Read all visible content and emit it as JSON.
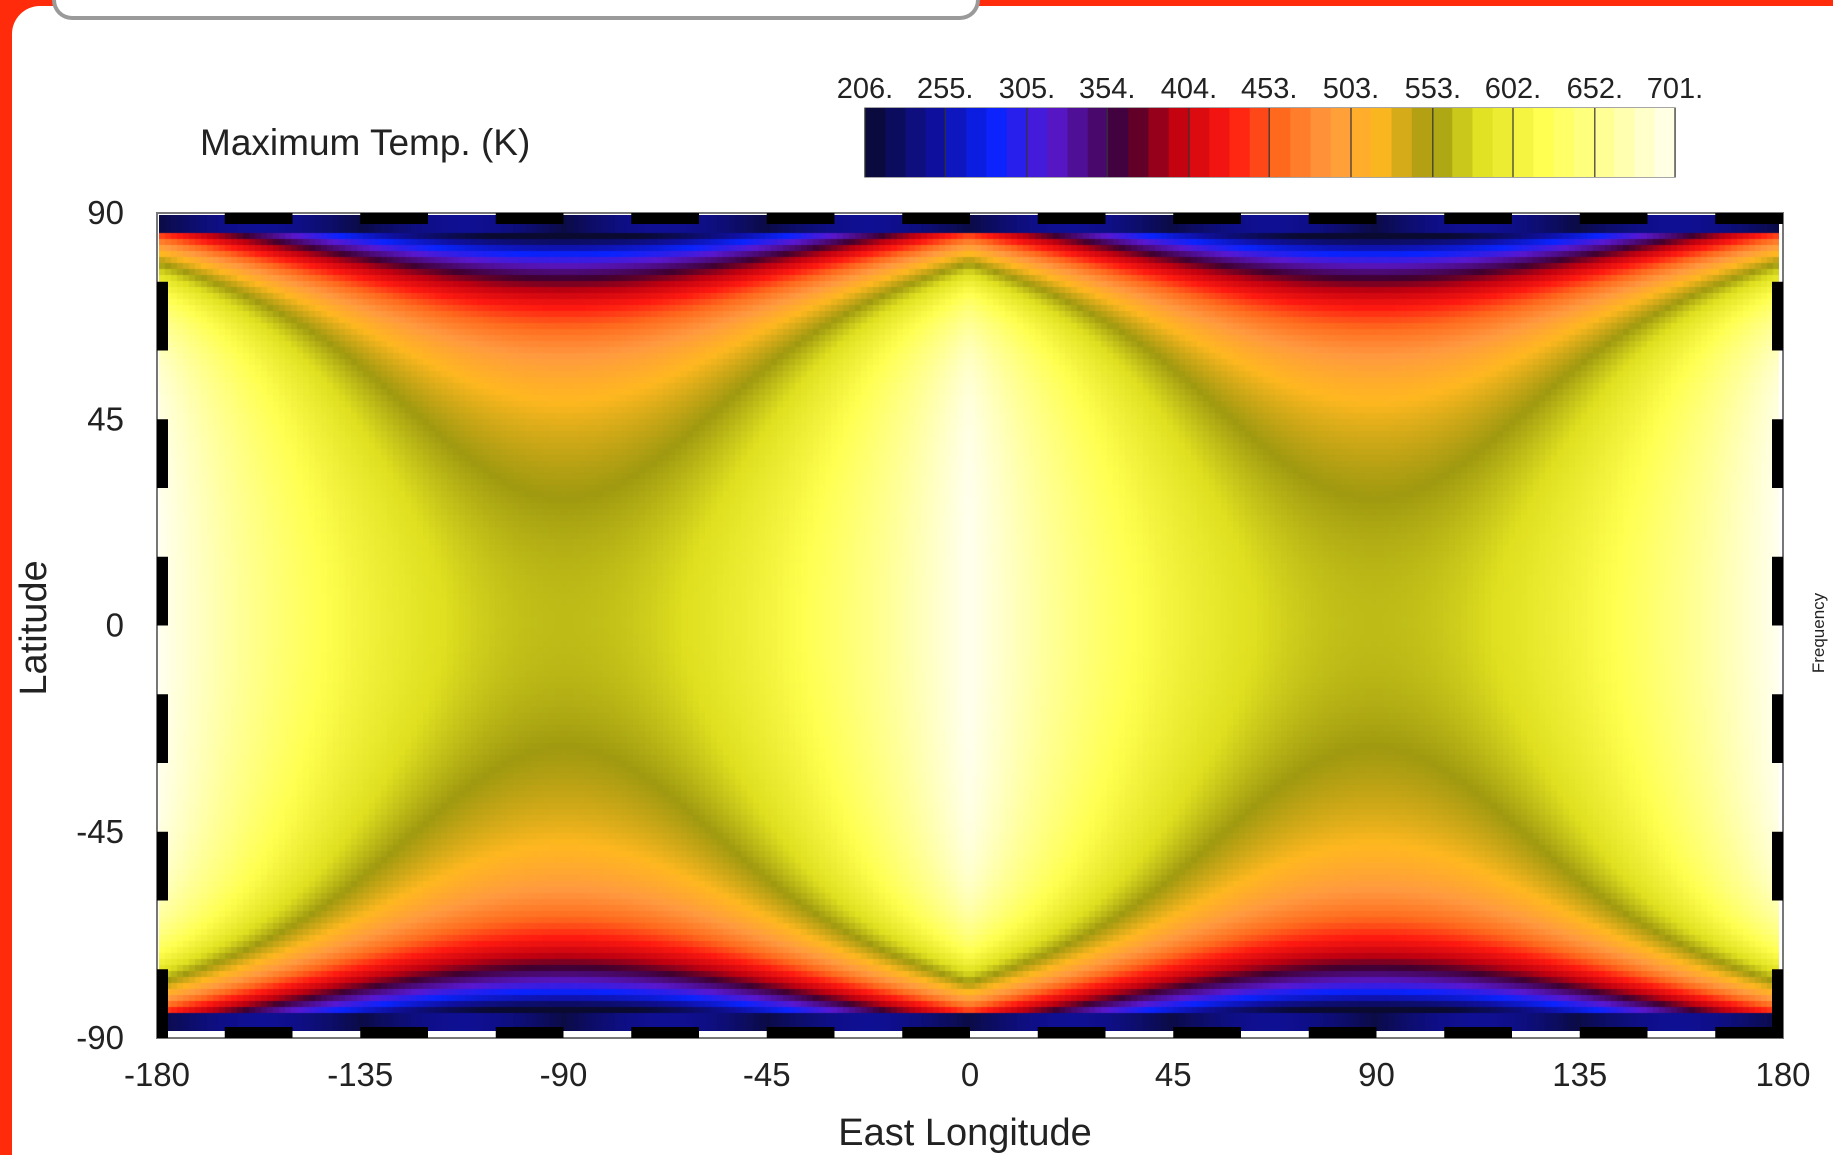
{
  "chart_data": {
    "type": "heatmap",
    "title": "Maximum Temp. (K)",
    "xlabel": "East Longitude",
    "ylabel": "Latitude",
    "side_label": "Frequency",
    "xlim": [
      -180,
      180
    ],
    "ylim": [
      -90,
      90
    ],
    "x_ticks": [
      "-180",
      "-135",
      "-90",
      "-45",
      "0",
      "45",
      "90",
      "135",
      "180"
    ],
    "y_ticks": [
      "90",
      "45",
      "0",
      "-45",
      "-90"
    ],
    "colorbar": {
      "min": 206,
      "max": 701,
      "tick_labels": [
        "206.",
        "255.",
        "305.",
        "354.",
        "404.",
        "453.",
        "503.",
        "553.",
        "602.",
        "652.",
        "701."
      ],
      "tick_values": [
        206,
        255,
        305,
        354,
        404,
        453,
        503,
        553,
        602,
        652,
        701
      ],
      "color_stops": [
        [
          206,
          "#0a0a30"
        ],
        [
          250,
          "#1010a0"
        ],
        [
          285,
          "#0a24ff"
        ],
        [
          320,
          "#5a18d0"
        ],
        [
          365,
          "#400030"
        ],
        [
          395,
          "#c00010"
        ],
        [
          430,
          "#ff1a10"
        ],
        [
          460,
          "#ff6a1e"
        ],
        [
          490,
          "#ff9a40"
        ],
        [
          520,
          "#ffb820"
        ],
        [
          553,
          "#a09a10"
        ],
        [
          580,
          "#e0e020"
        ],
        [
          620,
          "#ffff50"
        ],
        [
          660,
          "#ffff9a"
        ],
        [
          701,
          "#fffff0"
        ]
      ]
    },
    "field_model": {
      "hot_spot_longitudes": [
        0,
        180,
        -180
      ],
      "cool_band_longitudes": [
        -90,
        90
      ],
      "max_temperature": 701,
      "min_temperature": 206
    }
  }
}
